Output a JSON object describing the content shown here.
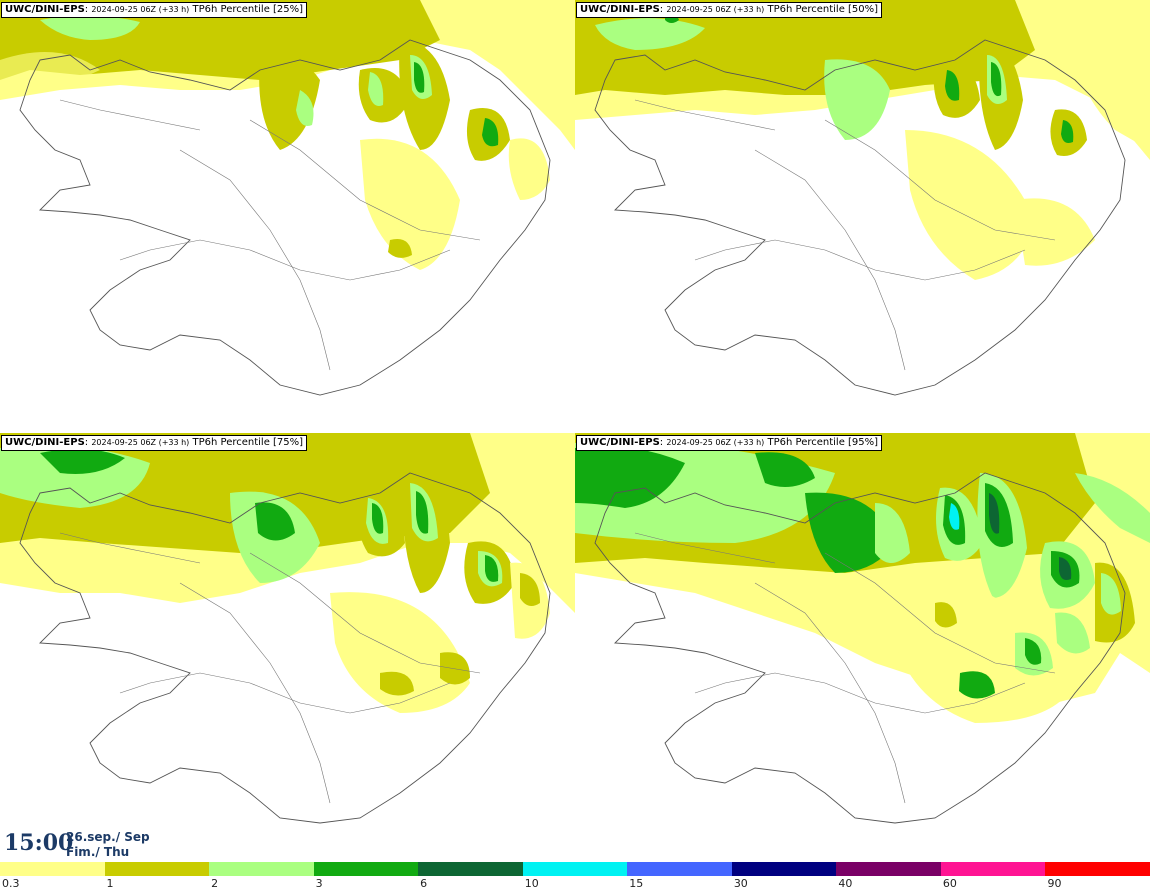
{
  "panels": [
    {
      "model": "UWC/DINI-EPS",
      "run": "2024-09-25 06Z (+33 h)",
      "product": "TP6h Percentile [25%]"
    },
    {
      "model": "UWC/DINI-EPS",
      "run": "2024-09-25 06Z (+33 h)",
      "product": "TP6h Percentile [50%]"
    },
    {
      "model": "UWC/DINI-EPS",
      "run": "2024-09-25 06Z (+33 h)",
      "product": "TP6h Percentile [75%]"
    },
    {
      "model": "UWC/DINI-EPS",
      "run": "2024-09-25 06Z (+33 h)",
      "product": "TP6h Percentile [95%]"
    }
  ],
  "valid_time": {
    "clock": "15:00",
    "date_line": "26.sep./ Sep",
    "day_line": "Fim./ Thu"
  },
  "legend": {
    "colors": [
      "#ffff88",
      "#c8cc00",
      "#aaff80",
      "#11aa11",
      "#0d6633",
      "#00f2f2",
      "#4466ff",
      "#000080",
      "#7a0066",
      "#ff1493",
      "#ff0000"
    ],
    "labels": [
      "0.3",
      "1",
      "2",
      "3",
      "6",
      "10",
      "15",
      "30",
      "40",
      "60",
      "90"
    ]
  }
}
